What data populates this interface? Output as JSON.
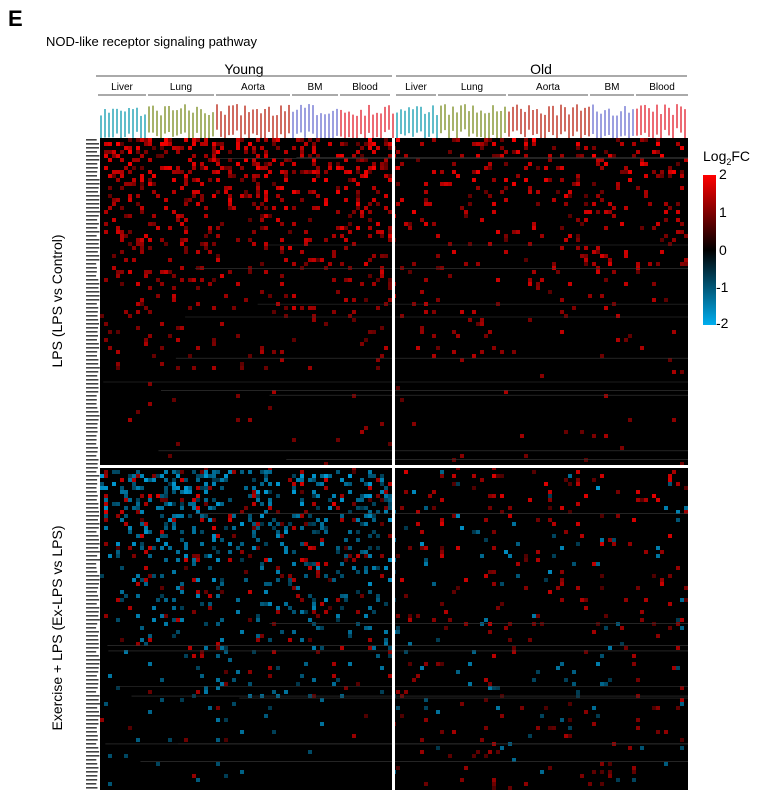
{
  "panel_letter": "E",
  "colors": {
    "positive": "#ff0000",
    "zero": "#000000",
    "negative": "#00aeef"
  },
  "chart_data": {
    "type": "heatmap",
    "title": "NOD-like receptor signaling pathway",
    "column_groups": [
      {
        "label": "Young",
        "tissues": [
          "Liver",
          "Lung",
          "Aorta",
          "BM",
          "Blood"
        ]
      },
      {
        "label": "Old",
        "tissues": [
          "Liver",
          "Lung",
          "Aorta",
          "BM",
          "Blood"
        ]
      }
    ],
    "row_groups": [
      {
        "label": "LPS (LPS vs Control)"
      },
      {
        "label": "Exercise + LPS (Ex-LPS vs LPS)"
      }
    ],
    "color_scale": {
      "title_main": "Log",
      "title_sub": "2",
      "title_end": "FC",
      "min": -2,
      "max": 2,
      "ticks": [
        "2",
        "1",
        "0",
        "-1",
        "-2"
      ]
    }
  }
}
